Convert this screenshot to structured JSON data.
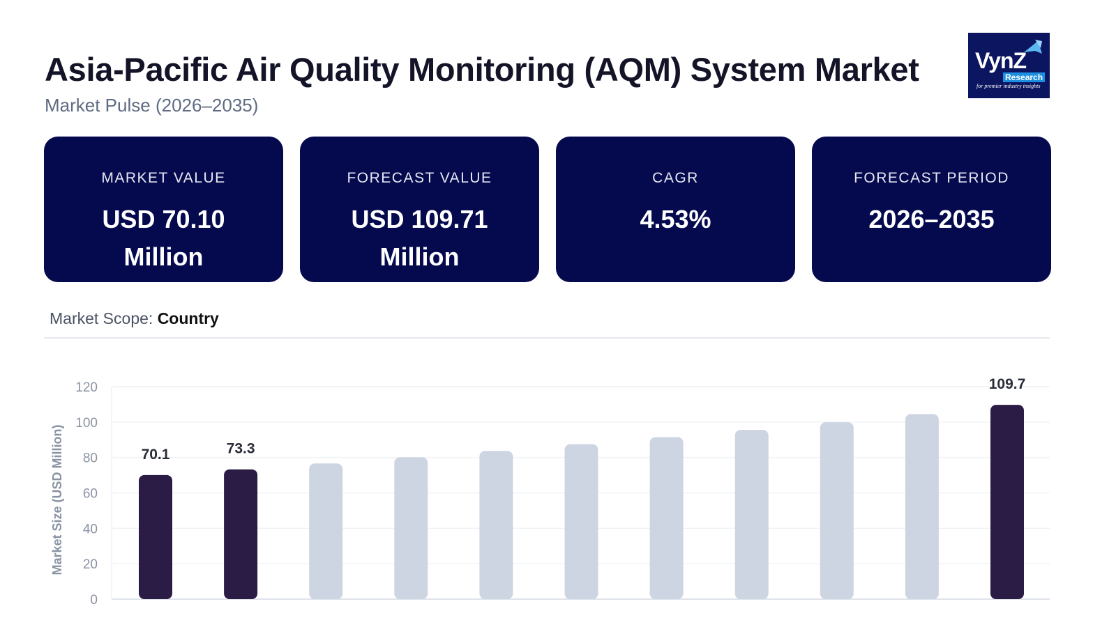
{
  "header": {
    "title": "Asia-Pacific Air Quality Monitoring (AQM) System Market",
    "subtitle": "Market Pulse (2026–2035)"
  },
  "logo": {
    "text": "VynZ",
    "sub": "Research",
    "tagline": "for premier industry insights"
  },
  "cards": [
    {
      "label": "MARKET VALUE",
      "value": "USD 70.10 Million"
    },
    {
      "label": "FORECAST VALUE",
      "value": "USD 109.71 Million"
    },
    {
      "label": "CAGR",
      "value": "4.53%"
    },
    {
      "label": "FORECAST PERIOD",
      "value": "2026–2035"
    }
  ],
  "scope": {
    "label": "Market Scope:",
    "value": "Country"
  },
  "colors": {
    "highlight": "#2b1c45",
    "muted": "#ccd5e1",
    "card": "#050a4e"
  },
  "chart_data": {
    "type": "bar",
    "ylabel": "Market Size (USD Million)",
    "ylim": [
      0,
      120
    ],
    "yticks": [
      0,
      20,
      40,
      60,
      80,
      100,
      120
    ],
    "grid": true,
    "values": [
      70.1,
      73.3,
      76.6,
      80.1,
      83.7,
      87.5,
      91.5,
      95.6,
      99.9,
      104.5,
      109.7
    ],
    "highlighted": [
      true,
      true,
      false,
      false,
      false,
      false,
      false,
      false,
      false,
      false,
      true
    ],
    "data_labels": [
      "70.1",
      "73.3",
      "",
      "",
      "",
      "",
      "",
      "",
      "",
      "",
      "109.7"
    ]
  }
}
